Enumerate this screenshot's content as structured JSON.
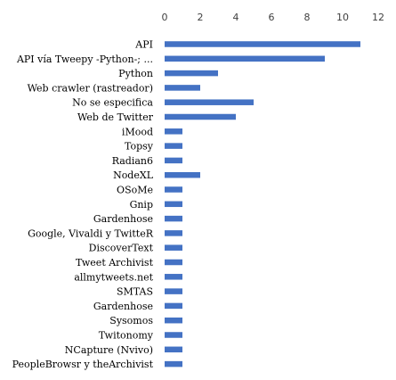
{
  "chart_data": {
    "type": "bar",
    "orientation": "horizontal",
    "title": "",
    "xlabel": "",
    "ylabel": "",
    "xlim": [
      0,
      12
    ],
    "x_ticks": [
      "0",
      "2",
      "4",
      "6",
      "8",
      "10",
      "12"
    ],
    "x_axis_position": "top",
    "grid": false,
    "legend": "none",
    "bar_color": "#4472C4",
    "categories": [
      "API",
      "API vía Tweepy -Python-; ...",
      "Python",
      "Web crawler (rastreador)",
      "No se especifica",
      "Web de Twitter",
      "iMood",
      "Topsy",
      "Radian6",
      "NodeXL",
      "OSoMe",
      "Gnip",
      "Gardenhose",
      "Google, Vivaldi y TwitteR",
      "DiscoverText",
      "Tweet Archivist",
      "allmytweets.net",
      "SMTAS",
      "Gardenhose",
      "Sysomos",
      "Twitonomy",
      "NCapture  (Nvivo)",
      "PeopleBrowsr y theArchivist"
    ],
    "values": [
      11,
      9,
      3,
      2,
      5,
      4,
      1,
      1,
      1,
      2,
      1,
      1,
      1,
      1,
      1,
      1,
      1,
      1,
      1,
      1,
      1,
      1,
      1
    ]
  }
}
